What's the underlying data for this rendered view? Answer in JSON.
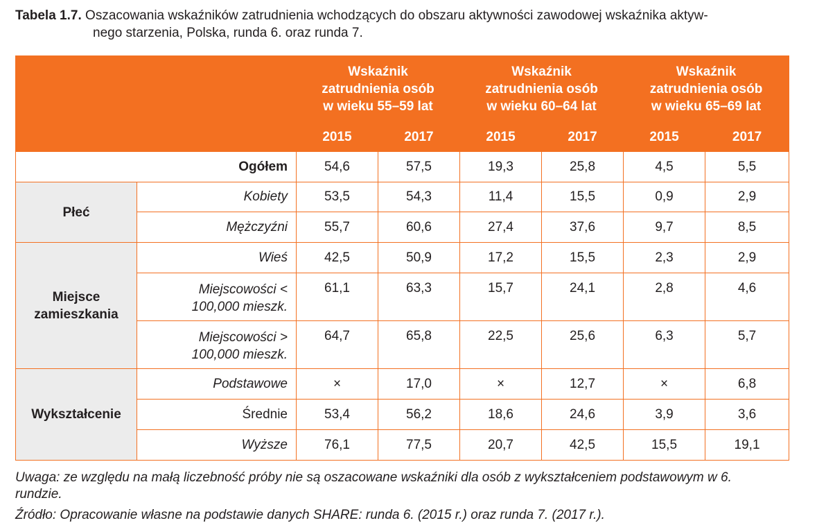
{
  "caption": {
    "label": "Tabela 1.7.",
    "line1": "Oszacowania wskaźników zatrudnienia wchodzących do obszaru aktywności zawodowej wskaźnika aktyw-",
    "line2": "nego starzenia, Polska, runda 6. oraz runda 7."
  },
  "table": {
    "group_headers": [
      {
        "line1": "Wskaźnik",
        "line2": "zatrudnienia osób",
        "line3": "w wieku 55–59 lat"
      },
      {
        "line1": "Wskaźnik",
        "line2": "zatrudnienia osób",
        "line3": "w wieku 60–64 lat"
      },
      {
        "line1": "Wskaźnik",
        "line2": "zatrudnienia osób",
        "line3": "w wieku 65–69 lat"
      }
    ],
    "years": [
      "2015",
      "2017",
      "2015",
      "2017",
      "2015",
      "2017"
    ],
    "total": {
      "label": "Ogółem",
      "values": [
        "54,6",
        "57,5",
        "19,3",
        "25,8",
        "4,5",
        "5,5"
      ]
    },
    "sections": [
      {
        "label": "Płeć",
        "rows": [
          {
            "label": "Kobiety",
            "values": [
              "53,5",
              "54,3",
              "11,4",
              "15,5",
              "0,9",
              "2,9"
            ]
          },
          {
            "label": "Mężczyźni",
            "values": [
              "55,7",
              "60,6",
              "27,4",
              "37,6",
              "9,7",
              "8,5"
            ]
          }
        ]
      },
      {
        "label_line1": "Miejsce",
        "label_line2": "zamieszkania",
        "rows": [
          {
            "label": "Wieś",
            "values": [
              "42,5",
              "50,9",
              "17,2",
              "15,5",
              "2,3",
              "2,9"
            ]
          },
          {
            "label_line1": "Miejscowości <",
            "label_line2": "100,000 mieszk.",
            "values": [
              "61,1",
              "63,3",
              "15,7",
              "24,1",
              "2,8",
              "4,6"
            ]
          },
          {
            "label_line1": "Miejscowości >",
            "label_line2": "100,000 mieszk.",
            "values": [
              "64,7",
              "65,8",
              "22,5",
              "25,6",
              "6,3",
              "5,7"
            ]
          }
        ]
      },
      {
        "label": "Wykształcenie",
        "rows": [
          {
            "label": "Podstawowe",
            "values": [
              "×",
              "17,0",
              "×",
              "12,7",
              "×",
              "6,8"
            ]
          },
          {
            "label": "Średnie",
            "values": [
              "53,4",
              "56,2",
              "18,6",
              "24,6",
              "3,9",
              "3,6"
            ]
          },
          {
            "label": "Wyższe",
            "values": [
              "76,1",
              "77,5",
              "20,7",
              "42,5",
              "15,5",
              "19,1"
            ]
          }
        ]
      }
    ]
  },
  "notes": {
    "uwaga_line1": "Uwaga: ze względu na małą liczebność próby nie są oszacowane wskaźniki dla osób z wykształceniem podstawowym w 6.",
    "uwaga_line2": "rundzie.",
    "zrodlo": "Źródło: Opracowanie własne na podstawie danych SHARE: runda 6. (2015 r.) oraz runda 7. (2017 r.)."
  },
  "colors": {
    "header_bg": "#f37021",
    "group_cell_bg": "#ececec",
    "text": "#231f20"
  }
}
